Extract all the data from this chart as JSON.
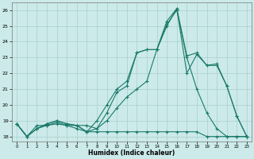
{
  "xlabel": "Humidex (Indice chaleur)",
  "xlim": [
    -0.5,
    23.5
  ],
  "ylim": [
    17.7,
    26.5
  ],
  "xtick_vals": [
    0,
    1,
    2,
    3,
    4,
    5,
    6,
    7,
    8,
    9,
    10,
    11,
    12,
    13,
    14,
    15,
    16,
    17,
    18,
    19,
    20,
    21,
    22,
    23
  ],
  "ytick_vals": [
    18,
    19,
    20,
    21,
    22,
    23,
    24,
    25,
    26
  ],
  "bg_color": "#cceaea",
  "grid_color": "#aacece",
  "line_color": "#1a7a6a",
  "series": [
    {
      "y": [
        18.8,
        18.0,
        18.7,
        18.7,
        18.8,
        18.7,
        18.5,
        18.3,
        18.3,
        18.3,
        18.3,
        18.3,
        18.3,
        18.3,
        18.3,
        18.3,
        18.3,
        18.3,
        18.3,
        18.0,
        18.0,
        18.0,
        18.0,
        18.0
      ]
    },
    {
      "y": [
        18.8,
        18.0,
        18.5,
        18.7,
        18.9,
        18.7,
        18.7,
        18.7,
        18.5,
        19.0,
        19.8,
        20.5,
        21.0,
        21.5,
        23.5,
        25.1,
        26.0,
        23.0,
        21.0,
        19.5,
        18.5,
        18.0,
        18.0,
        18.0
      ]
    },
    {
      "y": [
        18.8,
        18.0,
        18.5,
        18.8,
        19.0,
        18.8,
        18.7,
        18.3,
        18.5,
        19.5,
        20.8,
        21.2,
        23.3,
        23.5,
        23.5,
        25.3,
        26.1,
        23.1,
        23.3,
        22.5,
        22.6,
        21.2,
        19.3,
        18.0
      ]
    },
    {
      "y": [
        18.8,
        18.0,
        18.5,
        18.8,
        19.0,
        18.8,
        18.7,
        18.3,
        19.0,
        20.0,
        21.0,
        21.5,
        23.3,
        23.5,
        23.5,
        25.0,
        26.1,
        22.0,
        23.2,
        22.5,
        22.5,
        21.2,
        19.3,
        18.0
      ]
    }
  ]
}
